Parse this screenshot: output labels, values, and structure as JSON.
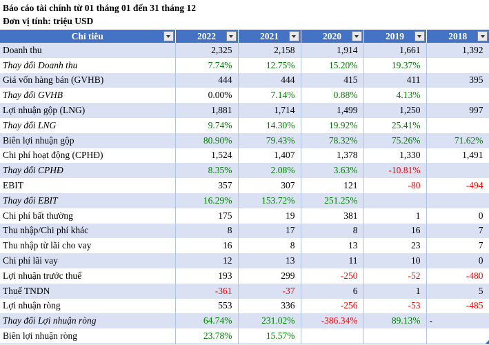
{
  "page": {
    "title": "Báo cáo tài chính từ 01 tháng 01 đến 31 tháng 12",
    "subtitle": "Đơn vị tính: triệu USD"
  },
  "colors": {
    "header_bg": "#4472C4",
    "header_text": "#FFFFFF",
    "band_bg": "#D9E1F2",
    "grid_line": "#AEC3E5",
    "green": "#008000",
    "red": "#FF0000",
    "black": "#000000"
  },
  "table": {
    "columns": [
      "Chỉ tiêu",
      "2022",
      "2021",
      "2020",
      "2019",
      "2018"
    ],
    "rows": [
      {
        "label": "Doanh thu",
        "italic": false,
        "values": [
          "2,325",
          "2,158",
          "1,914",
          "1,661",
          "1,392"
        ],
        "colors": [
          "k",
          "k",
          "k",
          "k",
          "k"
        ]
      },
      {
        "label": "Thay đổi Doanh thu",
        "italic": true,
        "values": [
          "7.74%",
          "12.75%",
          "15.20%",
          "19.37%",
          ""
        ],
        "colors": [
          "g",
          "g",
          "g",
          "g",
          "k"
        ]
      },
      {
        "label": "Giá vốn hàng bán (GVHB)",
        "italic": false,
        "values": [
          "444",
          "444",
          "415",
          "411",
          "395"
        ],
        "colors": [
          "k",
          "k",
          "k",
          "k",
          "k"
        ]
      },
      {
        "label": "Thay đổi GVHB",
        "italic": true,
        "values": [
          "0.00%",
          "7.14%",
          "0.88%",
          "4.13%",
          ""
        ],
        "colors": [
          "k",
          "g",
          "g",
          "g",
          "k"
        ]
      },
      {
        "label": "Lợi nhuận gộp (LNG)",
        "italic": false,
        "values": [
          "1,881",
          "1,714",
          "1,499",
          "1,250",
          "997"
        ],
        "colors": [
          "k",
          "k",
          "k",
          "k",
          "k"
        ]
      },
      {
        "label": "Thay đổi LNG",
        "italic": true,
        "values": [
          "9.74%",
          "14.30%",
          "19.92%",
          "25.41%",
          ""
        ],
        "colors": [
          "g",
          "g",
          "g",
          "g",
          "k"
        ]
      },
      {
        "label": "Biên lợi nhuận gộp",
        "italic": false,
        "values": [
          "80.90%",
          "79.43%",
          "78.32%",
          "75.26%",
          "71.62%"
        ],
        "colors": [
          "g",
          "g",
          "g",
          "g",
          "g"
        ]
      },
      {
        "label": "Chi phí hoạt động (CPHĐ)",
        "italic": false,
        "values": [
          "1,524",
          "1,407",
          "1,378",
          "1,330",
          "1,491"
        ],
        "colors": [
          "k",
          "k",
          "k",
          "k",
          "k"
        ]
      },
      {
        "label": "Thay đổi CPHĐ",
        "italic": true,
        "values": [
          "8.35%",
          "2.08%",
          "3.63%",
          "-10.81%",
          ""
        ],
        "colors": [
          "g",
          "g",
          "g",
          "r",
          "k"
        ]
      },
      {
        "label": "EBIT",
        "italic": false,
        "values": [
          "357",
          "307",
          "121",
          "-80",
          "-494"
        ],
        "colors": [
          "k",
          "k",
          "k",
          "r",
          "r"
        ]
      },
      {
        "label": "Thay đổi EBIT",
        "italic": true,
        "values": [
          "16.29%",
          "153.72%",
          "251.25%",
          "",
          ""
        ],
        "colors": [
          "g",
          "g",
          "g",
          "k",
          "k"
        ]
      },
      {
        "label": "Chi phí bất thường",
        "italic": false,
        "values": [
          "175",
          "19",
          "381",
          "1",
          "0"
        ],
        "colors": [
          "k",
          "k",
          "k",
          "k",
          "k"
        ]
      },
      {
        "label": "Thu nhập/Chi phí khác",
        "italic": false,
        "values": [
          "8",
          "17",
          "8",
          "16",
          "7"
        ],
        "colors": [
          "k",
          "k",
          "k",
          "k",
          "k"
        ]
      },
      {
        "label": "Thu nhập từ lãi cho vay",
        "italic": false,
        "values": [
          "16",
          "8",
          "13",
          "23",
          "7"
        ],
        "colors": [
          "k",
          "k",
          "k",
          "k",
          "k"
        ]
      },
      {
        "label": "Chi phí lãi vay",
        "italic": false,
        "values": [
          "12",
          "13",
          "11",
          "10",
          "0"
        ],
        "colors": [
          "k",
          "k",
          "k",
          "k",
          "k"
        ]
      },
      {
        "label": "Lợi nhuận trước thuế",
        "italic": false,
        "values": [
          "193",
          "299",
          "-250",
          "-52",
          "-480"
        ],
        "colors": [
          "k",
          "k",
          "r",
          "r",
          "r"
        ]
      },
      {
        "label": "Thuế TNDN",
        "italic": false,
        "values": [
          "-361",
          "-37",
          "6",
          "1",
          "5"
        ],
        "colors": [
          "r",
          "r",
          "k",
          "k",
          "k"
        ]
      },
      {
        "label": "Lợi nhuận ròng",
        "italic": false,
        "values": [
          "553",
          "336",
          "-256",
          "-53",
          "-485"
        ],
        "colors": [
          "k",
          "k",
          "r",
          "r",
          "r"
        ]
      },
      {
        "label": "Thay đổi Lợi nhuận ròng",
        "italic": true,
        "values": [
          "64.74%",
          "231.02%",
          "-386.34%",
          "89.13%",
          "-"
        ],
        "colors": [
          "g",
          "g",
          "r",
          "g",
          "k"
        ]
      },
      {
        "label": "Biên lợi nhuận ròng",
        "italic": false,
        "values": [
          "23.78%",
          "15.57%",
          "",
          "",
          ""
        ],
        "colors": [
          "g",
          "g",
          "k",
          "k",
          "k"
        ]
      }
    ]
  }
}
